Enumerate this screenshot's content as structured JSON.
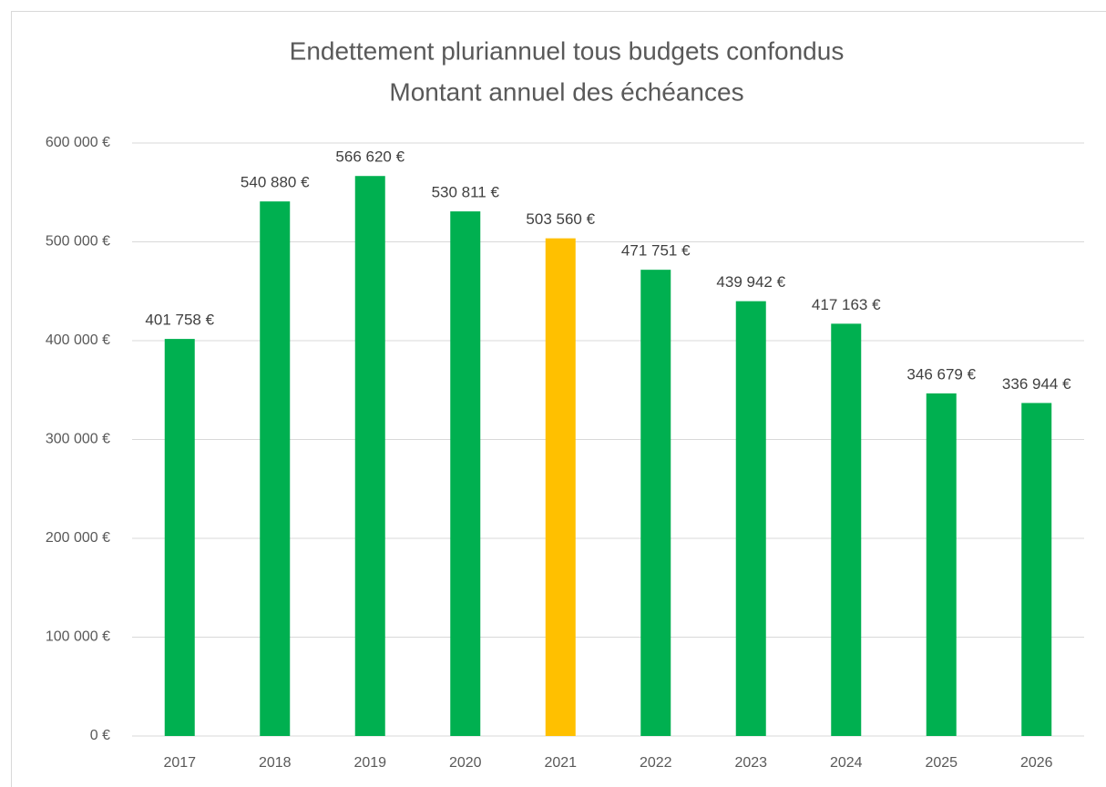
{
  "chart_data": {
    "type": "bar",
    "title": [
      "Endettement pluriannuel tous budgets confondus",
      "Montant annuel des échéances"
    ],
    "categories": [
      "2017",
      "2018",
      "2019",
      "2020",
      "2021",
      "2022",
      "2023",
      "2024",
      "2025",
      "2026"
    ],
    "values": [
      401758,
      540880,
      566620,
      530811,
      503560,
      471751,
      439942,
      417163,
      346679,
      336944
    ],
    "value_labels": [
      "401 758 €",
      "540 880 €",
      "566 620 €",
      "530 811 €",
      "503 560 €",
      "471 751 €",
      "439 942 €",
      "417 163 €",
      "346 679 €",
      "336 944 €"
    ],
    "colors": [
      "#00b050",
      "#00b050",
      "#00b050",
      "#00b050",
      "#ffc000",
      "#00b050",
      "#00b050",
      "#00b050",
      "#00b050",
      "#00b050"
    ],
    "ylim": [
      0,
      600000
    ],
    "yticks": [
      {
        "value": 0,
        "label": "0 €"
      },
      {
        "value": 100000,
        "label": "100 000 €"
      },
      {
        "value": 200000,
        "label": "200 000 €"
      },
      {
        "value": 300000,
        "label": "300 000 €"
      },
      {
        "value": 400000,
        "label": "400 000 €"
      },
      {
        "value": 500000,
        "label": "500 000 €"
      },
      {
        "value": 600000,
        "label": "600 000 €"
      }
    ],
    "grid": true
  }
}
